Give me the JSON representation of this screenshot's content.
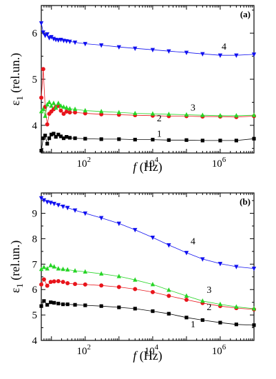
{
  "chart_data": [
    {
      "type": "scatter",
      "panel_label": "(a)",
      "xlabel_symbol": "f",
      "xlabel_unit": " (Hz)",
      "ylabel_symbol": "ε",
      "ylabel_sub": "1",
      "ylabel_unit": " (rel.un.)",
      "x_scale": "log",
      "xlim": [
        5,
        10000000
      ],
      "ylim": [
        3.4,
        6.6
      ],
      "x_ticks": [
        {
          "value": 100,
          "base": "10",
          "exp": "2"
        },
        {
          "value": 10000,
          "base": "10",
          "exp": "4"
        },
        {
          "value": 1000000,
          "base": "10",
          "exp": "6"
        }
      ],
      "y_ticks": [
        {
          "value": 4,
          "label": "4"
        },
        {
          "value": 5,
          "label": "5"
        },
        {
          "value": 6,
          "label": "6"
        }
      ],
      "grid": false,
      "series": [
        {
          "label": "1",
          "color": "#000000",
          "marker": "square",
          "x": [
            5.0,
            5.7,
            6.5,
            7.5,
            8.6,
            9.9,
            11.6,
            13.5,
            16.0,
            19.0,
            23.0,
            28.0,
            35.0,
            50.0,
            100.0,
            300.0,
            1000.0,
            3000.0,
            10000.0,
            30000.0,
            100000.0,
            300000.0,
            1000000.0,
            3000000.0,
            10000000.0
          ],
          "y": [
            3.45,
            3.72,
            3.78,
            3.6,
            3.72,
            3.8,
            3.82,
            3.75,
            3.8,
            3.76,
            3.72,
            3.75,
            3.73,
            3.72,
            3.71,
            3.7,
            3.7,
            3.69,
            3.69,
            3.68,
            3.68,
            3.67,
            3.67,
            3.67,
            3.71
          ]
        },
        {
          "label": "2",
          "color": "#e8141b",
          "marker": "circle",
          "x": [
            5.0,
            5.7,
            6.5,
            7.5,
            8.6,
            9.9,
            11.6,
            13.5,
            16.0,
            19.0,
            23.0,
            28.0,
            35.0,
            50.0,
            100.0,
            300.0,
            1000.0,
            3000.0,
            10000.0,
            30000.0,
            100000.0,
            300000.0,
            1000000.0,
            3000000.0,
            10000000.0
          ],
          "y": [
            4.6,
            5.22,
            4.4,
            4.02,
            4.25,
            4.3,
            4.35,
            4.4,
            4.42,
            4.32,
            4.25,
            4.3,
            4.28,
            4.28,
            4.26,
            4.24,
            4.23,
            4.22,
            4.21,
            4.2,
            4.2,
            4.19,
            4.19,
            4.18,
            4.2
          ]
        },
        {
          "label": "3",
          "color": "#26d526",
          "marker": "triangle-up",
          "x": [
            5.0,
            5.7,
            6.5,
            7.5,
            8.6,
            9.9,
            11.6,
            13.5,
            16.0,
            19.0,
            23.0,
            28.0,
            35.0,
            50.0,
            100.0,
            300.0,
            1000.0,
            3000.0,
            10000.0,
            30000.0,
            100000.0,
            300000.0,
            1000000.0,
            3000000.0,
            10000000.0
          ],
          "y": [
            4.3,
            4.35,
            4.2,
            4.45,
            4.5,
            4.42,
            4.48,
            4.38,
            4.48,
            4.42,
            4.4,
            4.38,
            4.36,
            4.35,
            4.32,
            4.3,
            4.28,
            4.26,
            4.25,
            4.24,
            4.23,
            4.22,
            4.21,
            4.21,
            4.22
          ]
        },
        {
          "label": "4",
          "color": "#1010f0",
          "marker": "triangle-down",
          "x": [
            5.0,
            5.7,
            6.5,
            7.5,
            8.6,
            9.9,
            11.6,
            13.5,
            16.0,
            19.0,
            23.0,
            28.0,
            35.0,
            50.0,
            100.0,
            300.0,
            1000.0,
            3000.0,
            10000.0,
            30000.0,
            100000.0,
            300000.0,
            1000000.0,
            3000000.0,
            10000000.0
          ],
          "y": [
            6.22,
            6.02,
            5.95,
            5.98,
            5.9,
            5.92,
            5.88,
            5.86,
            5.85,
            5.86,
            5.84,
            5.83,
            5.82,
            5.8,
            5.77,
            5.74,
            5.7,
            5.67,
            5.64,
            5.61,
            5.58,
            5.55,
            5.52,
            5.52,
            5.54
          ]
        }
      ]
    },
    {
      "type": "scatter",
      "panel_label": "(b)",
      "xlabel_symbol": "f",
      "xlabel_unit": " (Hz)",
      "ylabel_symbol": "ε",
      "ylabel_sub": "1",
      "ylabel_unit": " (rel.un.)",
      "x_scale": "log",
      "xlim": [
        5,
        10000000
      ],
      "ylim": [
        4,
        9.8
      ],
      "x_ticks": [
        {
          "value": 100,
          "base": "10",
          "exp": "2"
        },
        {
          "value": 10000,
          "base": "10",
          "exp": "4"
        },
        {
          "value": 1000000,
          "base": "10",
          "exp": "6"
        }
      ],
      "y_ticks": [
        {
          "value": 4,
          "label": "4"
        },
        {
          "value": 5,
          "label": "5"
        },
        {
          "value": 6,
          "label": "6"
        },
        {
          "value": 7,
          "label": "7"
        },
        {
          "value": 8,
          "label": "8"
        },
        {
          "value": 9,
          "label": "9"
        }
      ],
      "grid": false,
      "series": [
        {
          "label": "1",
          "color": "#000000",
          "marker": "square",
          "x": [
            5.0,
            6.0,
            7.5,
            9.5,
            12.0,
            16.0,
            22.0,
            30.0,
            50.0,
            100.0,
            300.0,
            1000.0,
            3000.0,
            10000.0,
            30000.0,
            100000.0,
            300000.0,
            1000000.0,
            3000000.0,
            10000000.0
          ],
          "y": [
            5.35,
            5.55,
            5.4,
            5.5,
            5.48,
            5.45,
            5.42,
            5.42,
            5.4,
            5.38,
            5.35,
            5.3,
            5.25,
            5.15,
            5.05,
            4.9,
            4.8,
            4.7,
            4.63,
            4.6
          ]
        },
        {
          "label": "2",
          "color": "#e8141b",
          "marker": "circle",
          "x": [
            5.0,
            6.0,
            7.5,
            9.5,
            12.0,
            16.0,
            22.0,
            30.0,
            50.0,
            100.0,
            300.0,
            1000.0,
            3000.0,
            10000.0,
            30000.0,
            100000.0,
            300000.0,
            1000000.0,
            3000000.0,
            10000000.0
          ],
          "y": [
            6.2,
            6.4,
            6.15,
            6.3,
            6.32,
            6.33,
            6.3,
            6.25,
            6.22,
            6.2,
            6.16,
            6.1,
            6.02,
            5.9,
            5.75,
            5.6,
            5.47,
            5.35,
            5.27,
            5.22
          ]
        },
        {
          "label": "3",
          "color": "#26d526",
          "marker": "triangle-up",
          "x": [
            5.0,
            6.0,
            7.5,
            9.5,
            12.0,
            16.0,
            22.0,
            30.0,
            50.0,
            100.0,
            300.0,
            1000.0,
            3000.0,
            10000.0,
            30000.0,
            100000.0,
            300000.0,
            1000000.0,
            3000000.0,
            10000000.0
          ],
          "y": [
            6.8,
            6.88,
            6.82,
            6.95,
            6.9,
            6.82,
            6.8,
            6.78,
            6.74,
            6.7,
            6.62,
            6.52,
            6.38,
            6.2,
            5.98,
            5.75,
            5.55,
            5.42,
            5.32,
            5.25
          ]
        },
        {
          "label": "4",
          "color": "#1010f0",
          "marker": "triangle-down",
          "x": [
            5.0,
            6.0,
            7.5,
            9.5,
            12.0,
            16.0,
            22.0,
            30.0,
            50.0,
            100.0,
            300.0,
            1000.0,
            3000.0,
            10000.0,
            30000.0,
            100000.0,
            300000.0,
            1000000.0,
            3000000.0,
            10000000.0
          ],
          "y": [
            9.6,
            9.52,
            9.45,
            9.42,
            9.38,
            9.33,
            9.27,
            9.22,
            9.12,
            9.0,
            8.82,
            8.6,
            8.35,
            8.05,
            7.75,
            7.45,
            7.2,
            7.02,
            6.9,
            6.83
          ]
        }
      ]
    }
  ]
}
